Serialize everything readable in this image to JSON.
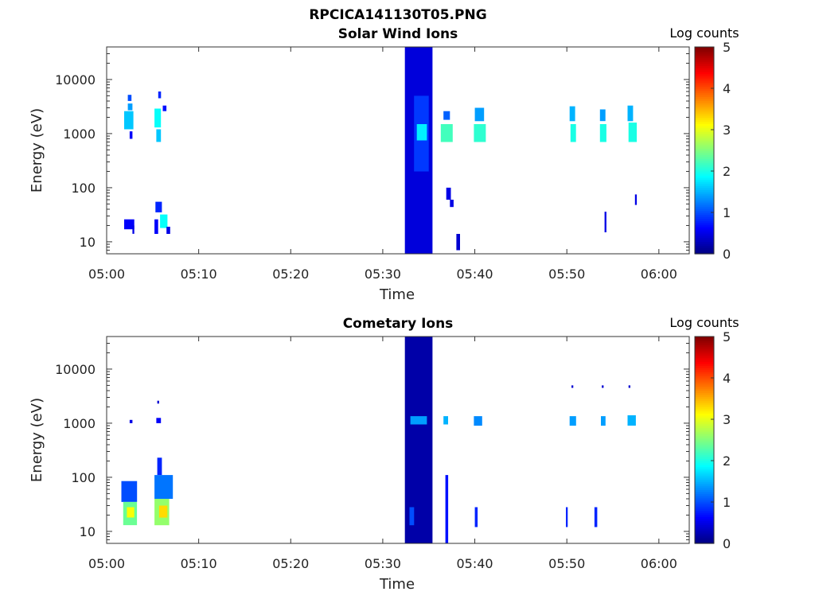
{
  "figure_title": "RPCICA141130T05.PNG",
  "colorbar": {
    "label": "Log counts",
    "ticks": [
      "0",
      "1",
      "2",
      "3",
      "4",
      "5"
    ],
    "range": [
      0,
      5
    ],
    "colormap": "jet"
  },
  "chart_data": [
    {
      "type": "heatmap",
      "title": "Solar Wind Ions",
      "xlabel": "Time",
      "ylabel": "Energy (eV)",
      "x_ticks": [
        "05:00",
        "05:10",
        "05:20",
        "05:30",
        "05:40",
        "05:50",
        "06:00"
      ],
      "x_tick_minutes": [
        0,
        10,
        20,
        30,
        40,
        50,
        60
      ],
      "xlim_minutes": [
        0,
        63.3
      ],
      "y_ticks": [
        "10",
        "100",
        "1000",
        "10000"
      ],
      "y_tick_values": [
        10,
        100,
        1000,
        10000
      ],
      "ylim": [
        6,
        40000
      ],
      "yscale": "log",
      "colorbar_label": "Log counts",
      "clim": [
        0,
        5
      ],
      "cells": [
        {
          "t0": 1.9,
          "t1": 2.9,
          "e0": 1200,
          "e1": 2600,
          "log_counts": 1.6
        },
        {
          "t0": 2.3,
          "t1": 2.7,
          "e0": 4000,
          "e1": 5200,
          "log_counts": 1.0
        },
        {
          "t0": 2.3,
          "t1": 2.8,
          "e0": 2700,
          "e1": 3600,
          "log_counts": 1.4
        },
        {
          "t0": 2.5,
          "t1": 2.8,
          "e0": 800,
          "e1": 1100,
          "log_counts": 0.6
        },
        {
          "t0": 1.9,
          "t1": 3.0,
          "e0": 17,
          "e1": 26,
          "log_counts": 0.6
        },
        {
          "t0": 2.8,
          "t1": 3.0,
          "e0": 14,
          "e1": 20,
          "log_counts": 0.5
        },
        {
          "t0": 5.2,
          "t1": 5.9,
          "e0": 1300,
          "e1": 2900,
          "log_counts": 1.9
        },
        {
          "t0": 5.4,
          "t1": 5.9,
          "e0": 700,
          "e1": 1200,
          "log_counts": 1.6
        },
        {
          "t0": 5.6,
          "t1": 5.9,
          "e0": 4500,
          "e1": 6000,
          "log_counts": 0.8
        },
        {
          "t0": 6.1,
          "t1": 6.5,
          "e0": 2600,
          "e1": 3300,
          "log_counts": 0.7
        },
        {
          "t0": 5.3,
          "t1": 6.0,
          "e0": 35,
          "e1": 55,
          "log_counts": 0.8
        },
        {
          "t0": 5.2,
          "t1": 5.6,
          "e0": 14,
          "e1": 26,
          "log_counts": 0.6
        },
        {
          "t0": 5.8,
          "t1": 6.6,
          "e0": 18,
          "e1": 32,
          "log_counts": 1.9
        },
        {
          "t0": 6.5,
          "t1": 6.9,
          "e0": 14,
          "e1": 19,
          "log_counts": 0.5
        },
        {
          "t0": 32.4,
          "t1": 35.4,
          "e0": 6,
          "e1": 40000,
          "log_counts": 0.45
        },
        {
          "t0": 33.4,
          "t1": 35.0,
          "e0": 200,
          "e1": 5000,
          "log_counts": 0.9
        },
        {
          "t0": 33.7,
          "t1": 34.8,
          "e0": 750,
          "e1": 1500,
          "log_counts": 1.8
        },
        {
          "t0": 36.3,
          "t1": 37.6,
          "e0": 700,
          "e1": 1500,
          "log_counts": 2.2
        },
        {
          "t0": 36.6,
          "t1": 37.3,
          "e0": 1800,
          "e1": 2600,
          "log_counts": 1.1
        },
        {
          "t0": 36.9,
          "t1": 37.4,
          "e0": 60,
          "e1": 100,
          "log_counts": 0.5
        },
        {
          "t0": 37.3,
          "t1": 37.7,
          "e0": 44,
          "e1": 60,
          "log_counts": 0.5
        },
        {
          "t0": 38.0,
          "t1": 38.4,
          "e0": 7,
          "e1": 14,
          "log_counts": 0.4
        },
        {
          "t0": 39.9,
          "t1": 41.2,
          "e0": 700,
          "e1": 1500,
          "log_counts": 2.1
        },
        {
          "t0": 40.0,
          "t1": 41.0,
          "e0": 1700,
          "e1": 3000,
          "log_counts": 1.4
        },
        {
          "t0": 50.4,
          "t1": 51.0,
          "e0": 700,
          "e1": 1500,
          "log_counts": 2.0
        },
        {
          "t0": 50.3,
          "t1": 50.9,
          "e0": 1700,
          "e1": 3200,
          "log_counts": 1.5
        },
        {
          "t0": 53.6,
          "t1": 54.3,
          "e0": 700,
          "e1": 1500,
          "log_counts": 2.0
        },
        {
          "t0": 53.6,
          "t1": 54.2,
          "e0": 1700,
          "e1": 2800,
          "log_counts": 1.4
        },
        {
          "t0": 54.1,
          "t1": 54.3,
          "e0": 15,
          "e1": 36,
          "log_counts": 0.5
        },
        {
          "t0": 56.7,
          "t1": 57.6,
          "e0": 700,
          "e1": 1600,
          "log_counts": 2.0
        },
        {
          "t0": 56.6,
          "t1": 57.2,
          "e0": 1700,
          "e1": 3300,
          "log_counts": 1.5
        },
        {
          "t0": 57.4,
          "t1": 57.6,
          "e0": 48,
          "e1": 75,
          "log_counts": 0.5
        }
      ]
    },
    {
      "type": "heatmap",
      "title": "Cometary Ions",
      "xlabel": "Time",
      "ylabel": "Energy (eV)",
      "x_ticks": [
        "05:00",
        "05:10",
        "05:20",
        "05:30",
        "05:40",
        "05:50",
        "06:00"
      ],
      "x_tick_minutes": [
        0,
        10,
        20,
        30,
        40,
        50,
        60
      ],
      "xlim_minutes": [
        0,
        63.3
      ],
      "y_ticks": [
        "10",
        "100",
        "1000",
        "10000"
      ],
      "y_tick_values": [
        10,
        100,
        1000,
        10000
      ],
      "ylim": [
        6,
        40000
      ],
      "yscale": "log",
      "colorbar_label": "Log counts",
      "clim": [
        0,
        5
      ],
      "cells": [
        {
          "t0": 1.6,
          "t1": 3.3,
          "e0": 35,
          "e1": 85,
          "log_counts": 1.0
        },
        {
          "t0": 1.8,
          "t1": 3.3,
          "e0": 13,
          "e1": 35,
          "log_counts": 2.4
        },
        {
          "t0": 2.2,
          "t1": 3.0,
          "e0": 18,
          "e1": 28,
          "log_counts": 3.1
        },
        {
          "t0": 2.5,
          "t1": 2.8,
          "e0": 1000,
          "e1": 1150,
          "log_counts": 0.5
        },
        {
          "t0": 5.2,
          "t1": 7.2,
          "e0": 40,
          "e1": 110,
          "log_counts": 1.2
        },
        {
          "t0": 5.2,
          "t1": 6.8,
          "e0": 13,
          "e1": 40,
          "log_counts": 2.6
        },
        {
          "t0": 5.7,
          "t1": 6.6,
          "e0": 18,
          "e1": 30,
          "log_counts": 3.3
        },
        {
          "t0": 5.5,
          "t1": 6.0,
          "e0": 110,
          "e1": 230,
          "log_counts": 0.8
        },
        {
          "t0": 5.4,
          "t1": 5.9,
          "e0": 1000,
          "e1": 1250,
          "log_counts": 0.6
        },
        {
          "t0": 5.5,
          "t1": 5.7,
          "e0": 2300,
          "e1": 2600,
          "log_counts": 0.4
        },
        {
          "t0": 32.4,
          "t1": 35.4,
          "e0": 6,
          "e1": 40000,
          "log_counts": 0.2
        },
        {
          "t0": 33.0,
          "t1": 34.8,
          "e0": 950,
          "e1": 1350,
          "log_counts": 1.4
        },
        {
          "t0": 32.9,
          "t1": 33.4,
          "e0": 13,
          "e1": 28,
          "log_counts": 1.0
        },
        {
          "t0": 36.6,
          "t1": 37.1,
          "e0": 950,
          "e1": 1350,
          "log_counts": 1.5
        },
        {
          "t0": 36.8,
          "t1": 37.1,
          "e0": 6,
          "e1": 110,
          "log_counts": 0.7
        },
        {
          "t0": 39.9,
          "t1": 40.8,
          "e0": 900,
          "e1": 1350,
          "log_counts": 1.3
        },
        {
          "t0": 40.0,
          "t1": 40.3,
          "e0": 12,
          "e1": 28,
          "log_counts": 0.8
        },
        {
          "t0": 49.9,
          "t1": 50.1,
          "e0": 12,
          "e1": 28,
          "log_counts": 0.8
        },
        {
          "t0": 50.3,
          "t1": 51.0,
          "e0": 900,
          "e1": 1350,
          "log_counts": 1.4
        },
        {
          "t0": 50.5,
          "t1": 50.7,
          "e0": 4500,
          "e1": 5000,
          "log_counts": 0.4
        },
        {
          "t0": 53.0,
          "t1": 53.3,
          "e0": 12,
          "e1": 28,
          "log_counts": 0.8
        },
        {
          "t0": 53.7,
          "t1": 54.2,
          "e0": 900,
          "e1": 1350,
          "log_counts": 1.4
        },
        {
          "t0": 53.8,
          "t1": 54.0,
          "e0": 4500,
          "e1": 5000,
          "log_counts": 0.4
        },
        {
          "t0": 56.6,
          "t1": 57.5,
          "e0": 900,
          "e1": 1400,
          "log_counts": 1.5
        },
        {
          "t0": 56.7,
          "t1": 56.9,
          "e0": 4500,
          "e1": 5000,
          "log_counts": 0.4
        }
      ]
    }
  ]
}
